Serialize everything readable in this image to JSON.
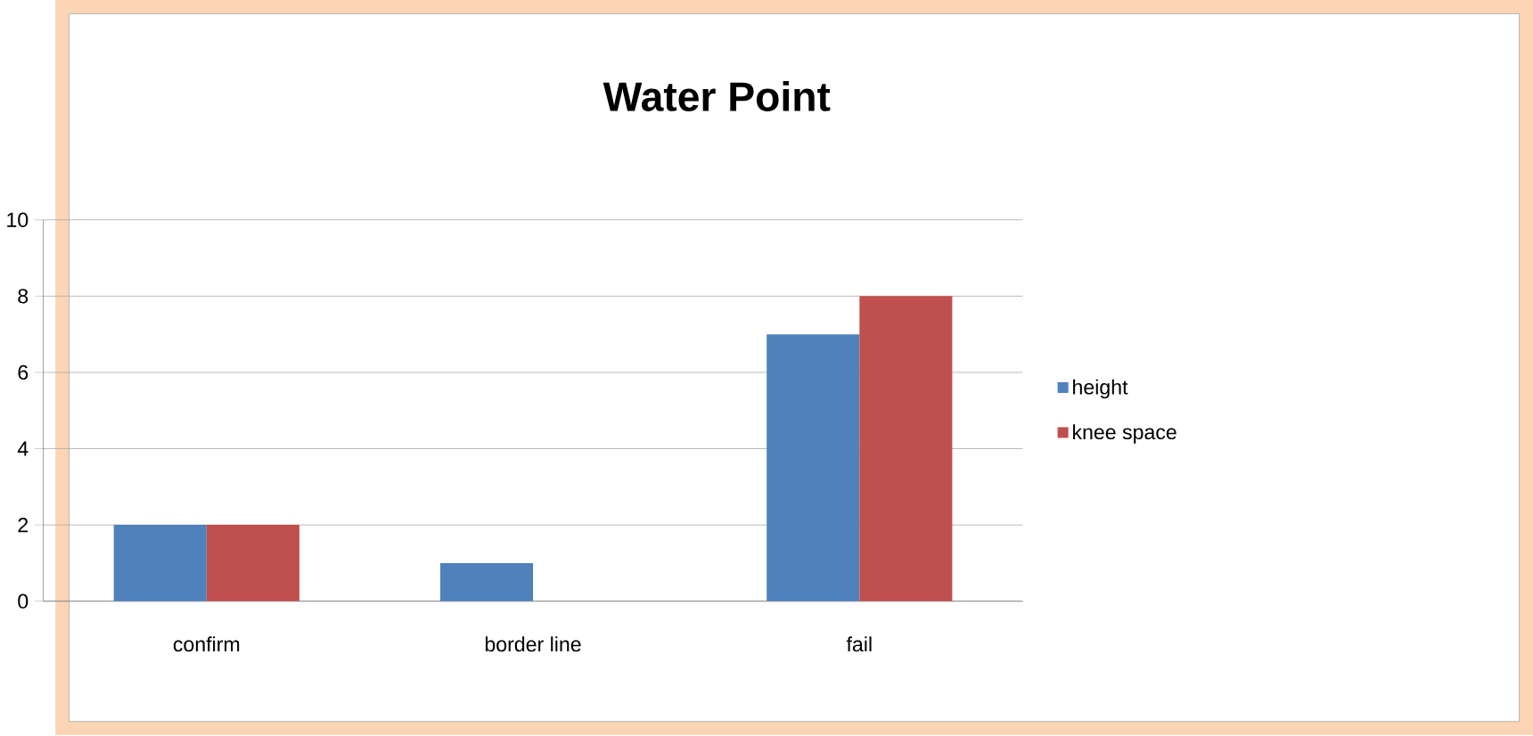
{
  "chart_data": {
    "type": "bar",
    "title": "Water Point",
    "categories": [
      "confirm",
      "border line",
      "fail"
    ],
    "series": [
      {
        "name": "height",
        "color": "#4f81bd",
        "values": [
          2,
          1,
          7
        ]
      },
      {
        "name": "knee space",
        "color": "#c0504d",
        "values": [
          2,
          0,
          8
        ]
      }
    ],
    "ylim": [
      0,
      10
    ],
    "yticks": [
      0,
      2,
      4,
      6,
      8,
      10
    ],
    "grid": "y",
    "legend": "right"
  }
}
